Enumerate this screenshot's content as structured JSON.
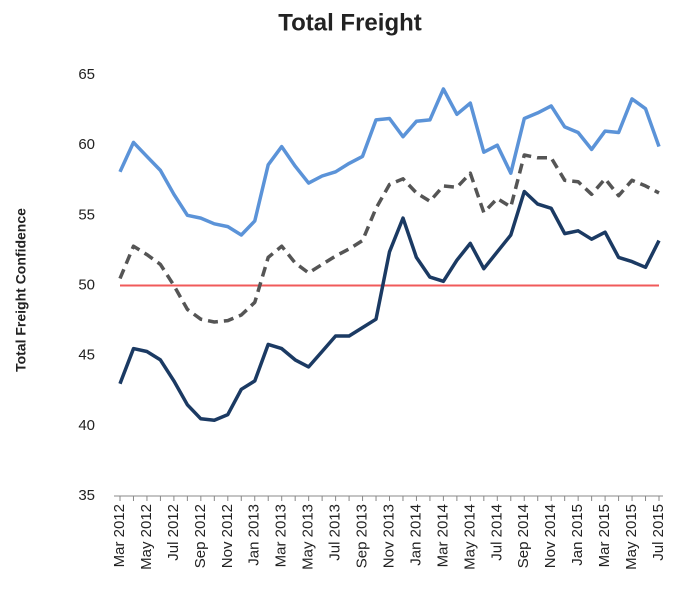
{
  "chart_data": {
    "type": "line",
    "title": "Total Freight",
    "y_label": "Total Freight Confidence",
    "categories": [
      "Mar 2012",
      null,
      "May 2012",
      null,
      "Jul 2012",
      null,
      "Sep 2012",
      null,
      "Nov 2012",
      null,
      "Jan 2013",
      null,
      "Mar 2013",
      null,
      "May 2013",
      null,
      "Jul 2013",
      null,
      "Sep 2013",
      null,
      "Nov 2013",
      null,
      "Jan 2014",
      null,
      "Mar 2014",
      null,
      "May 2014",
      null,
      "Jul 2014",
      null,
      "Sep 2014",
      null,
      "Nov 2014",
      null,
      "Jan 2015",
      null,
      "Mar 2015",
      null,
      "May 2015",
      null,
      "Jul 2015"
    ],
    "series": [
      {
        "color": "#5b93d8",
        "dash": false,
        "values": [
          58.1,
          60.2,
          59.2,
          58.2,
          56.5,
          55.0,
          54.8,
          54.4,
          54.2,
          53.6,
          54.6,
          58.6,
          59.9,
          58.5,
          57.3,
          57.8,
          58.1,
          58.7,
          59.2,
          61.8,
          61.9,
          60.6,
          61.7,
          61.8,
          64.0,
          62.2,
          63.0,
          59.5,
          60.0,
          58.0,
          61.9,
          62.3,
          62.8,
          61.3,
          60.9,
          59.7,
          61.0,
          60.9,
          63.3,
          62.6,
          59.9
        ]
      },
      {
        "color": "#555555",
        "dash": true,
        "values": [
          50.5,
          52.8,
          52.2,
          51.5,
          50.0,
          48.3,
          47.6,
          47.4,
          47.5,
          47.9,
          48.8,
          52.0,
          52.8,
          51.6,
          50.9,
          51.5,
          52.1,
          52.6,
          53.2,
          55.5,
          57.2,
          57.6,
          56.6,
          56.0,
          57.1,
          57.0,
          58.0,
          55.2,
          56.2,
          55.6,
          59.3,
          59.1,
          59.1,
          57.5,
          57.4,
          56.5,
          57.6,
          56.4,
          57.5,
          57.1,
          56.6
        ]
      },
      {
        "color": "#1b3a63",
        "dash": false,
        "values": [
          43.0,
          45.5,
          45.3,
          44.7,
          43.2,
          41.5,
          40.5,
          40.4,
          40.8,
          42.6,
          43.2,
          45.8,
          45.5,
          44.7,
          44.2,
          45.3,
          46.4,
          46.4,
          47.0,
          47.6,
          52.4,
          54.8,
          52.0,
          50.6,
          50.3,
          51.8,
          53.0,
          51.2,
          52.4,
          53.6,
          56.7,
          55.8,
          55.5,
          53.7,
          53.9,
          53.3,
          53.8,
          52.0,
          51.7,
          51.3,
          53.2
        ]
      }
    ],
    "reference_line": {
      "value": 50,
      "color": "#f05a5a"
    },
    "ylim": [
      35,
      65
    ],
    "yticks": [
      35,
      40,
      45,
      50,
      55,
      60,
      65
    ],
    "grid": false
  }
}
